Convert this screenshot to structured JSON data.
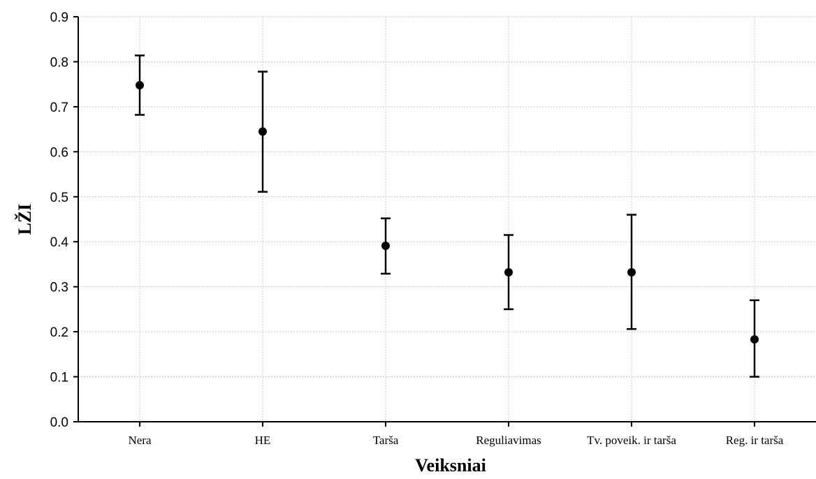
{
  "chart_data": {
    "type": "scatter",
    "title": "",
    "xlabel": "Veiksniai",
    "ylabel": "LŽI",
    "categories": [
      "Nera",
      "HE",
      "Tarša",
      "Reguliavimas",
      "Tv. poveik. ir tarša",
      "Reg. ir tarša"
    ],
    "series": [
      {
        "mean": [
          0.748,
          0.645,
          0.391,
          0.332,
          0.332,
          0.183
        ],
        "lower": [
          0.682,
          0.511,
          0.329,
          0.25,
          0.206,
          0.1
        ],
        "upper": [
          0.814,
          0.778,
          0.452,
          0.415,
          0.46,
          0.27
        ]
      }
    ],
    "ylim": [
      0,
      0.9
    ],
    "yticks": [
      "0.0",
      "0.1",
      "0.2",
      "0.3",
      "0.4",
      "0.5",
      "0.6",
      "0.7",
      "0.8",
      "0.9"
    ],
    "grid": true,
    "legend": "none",
    "marker_color": "#000000"
  }
}
